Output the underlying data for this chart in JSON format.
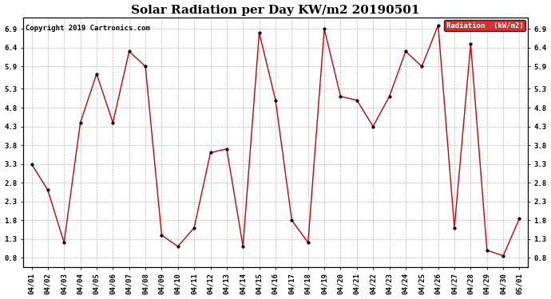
{
  "title": "Solar Radiation per Day KW/m2 20190501",
  "copyright": "Copyright 2019 Cartronics.com",
  "legend_label": "Radiation  (kW/m2)",
  "dates": [
    "04/01",
    "04/02",
    "04/03",
    "04/04",
    "04/05",
    "04/06",
    "04/07",
    "04/08",
    "04/09",
    "04/10",
    "04/11",
    "04/12",
    "04/13",
    "04/14",
    "04/15",
    "04/16",
    "04/17",
    "04/18",
    "04/19",
    "04/20",
    "04/21",
    "04/22",
    "04/23",
    "04/24",
    "04/25",
    "04/26",
    "04/27",
    "04/28",
    "04/29",
    "04/30",
    "05/01"
  ],
  "values": [
    3.3,
    2.6,
    1.2,
    4.4,
    5.7,
    4.4,
    6.3,
    5.9,
    1.4,
    1.1,
    1.6,
    3.6,
    3.7,
    1.1,
    6.8,
    5.0,
    1.8,
    1.2,
    6.9,
    5.1,
    5.0,
    4.3,
    5.1,
    6.3,
    5.9,
    7.0,
    1.6,
    6.5,
    1.0,
    0.85,
    1.85
  ],
  "line_color": "#cc0000",
  "marker_color": "#000000",
  "background_color": "#ffffff",
  "grid_color": "#999999",
  "ylim": [
    0.55,
    7.2
  ],
  "yticks": [
    0.8,
    1.3,
    1.8,
    2.3,
    2.8,
    3.3,
    3.8,
    4.3,
    4.8,
    5.3,
    5.9,
    6.4,
    6.9
  ],
  "legend_bg": "#cc0000",
  "legend_text_color": "#ffffff",
  "title_fontsize": 11,
  "copyright_fontsize": 6.5,
  "tick_fontsize": 6.5,
  "legend_fontsize": 6.5
}
